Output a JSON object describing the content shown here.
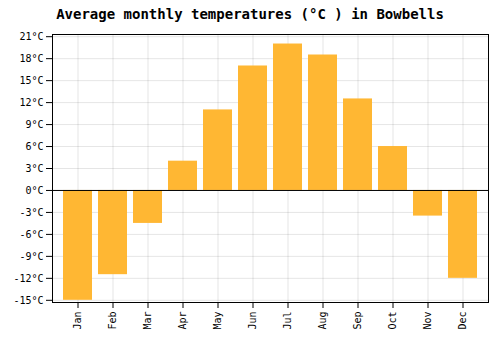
{
  "chart_data": {
    "type": "bar",
    "title": "Average monthly temperatures (°C ) in Bowbells",
    "categories": [
      "Jan",
      "Feb",
      "Mar",
      "Apr",
      "May",
      "Jun",
      "Jul",
      "Aug",
      "Sep",
      "Oct",
      "Nov",
      "Dec"
    ],
    "values": [
      -15,
      -11.5,
      -4.5,
      4,
      11,
      17,
      20,
      18.5,
      12.5,
      6,
      -3.5,
      -12
    ],
    "color": "#FFB733",
    "ylim": [
      -15.3,
      21.3
    ],
    "yticks": [
      {
        "value": -15,
        "label": "-15°C"
      },
      {
        "value": -12,
        "label": "-12°C"
      },
      {
        "value": -9,
        "label": "-9°C"
      },
      {
        "value": -6,
        "label": "-6°C"
      },
      {
        "value": -3,
        "label": "-3°C"
      },
      {
        "value": 0,
        "label": "0°C"
      },
      {
        "value": 3,
        "label": "3°C"
      },
      {
        "value": 6,
        "label": "6°C"
      },
      {
        "value": 9,
        "label": "9°C"
      },
      {
        "value": 12,
        "label": "12°C"
      },
      {
        "value": 15,
        "label": "15°C"
      },
      {
        "value": 18,
        "label": "18°C"
      },
      {
        "value": 21,
        "label": "21°C"
      }
    ],
    "grid": true
  }
}
